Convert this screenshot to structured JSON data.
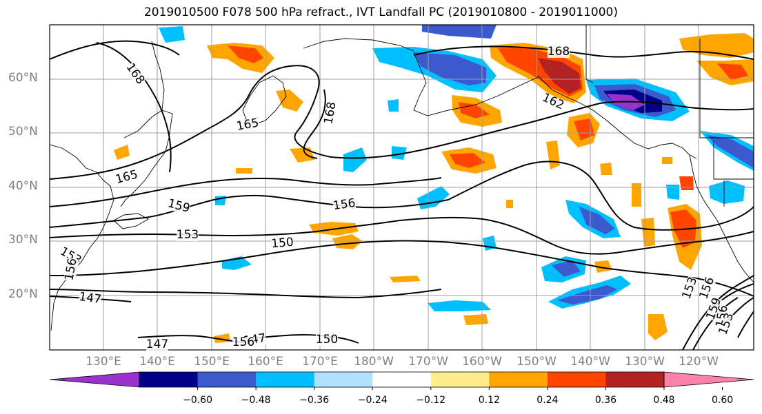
{
  "title": "2019010500 F078 500 hPa refract., IVT Landfall PC (2019010800 - 2019011000)",
  "lat_labels": [
    "60°N",
    "50°N",
    "40°N",
    "30°N",
    "20°N"
  ],
  "lon_labels": [
    "130°E",
    "140°E",
    "150°E",
    "160°E",
    "170°E",
    "180°W",
    "170°W",
    "160°W",
    "150°W",
    "140°W",
    "130°W",
    "120°W"
  ],
  "contour_labels": [
    "168",
    "168",
    "168",
    "165",
    "165",
    "162",
    "159",
    "156",
    "153",
    "153",
    "150",
    "147",
    "147",
    "147",
    "156",
    "156",
    "150",
    "153",
    "156",
    "159",
    "156",
    "153"
  ],
  "colorbar": {
    "tick_labels": [
      "−0.60",
      "−0.48",
      "−0.36",
      "−0.24",
      "−0.12",
      "0.12",
      "0.24",
      "0.36",
      "0.48",
      "0.60"
    ],
    "colors": [
      "#9932cc",
      "#00008b",
      "#3a5acd",
      "#00bfff",
      "#b0e2ff",
      "#ffffff",
      "#ffec8b",
      "#ffa500",
      "#ff4500",
      "#b22222",
      "#ff82ab"
    ]
  }
}
